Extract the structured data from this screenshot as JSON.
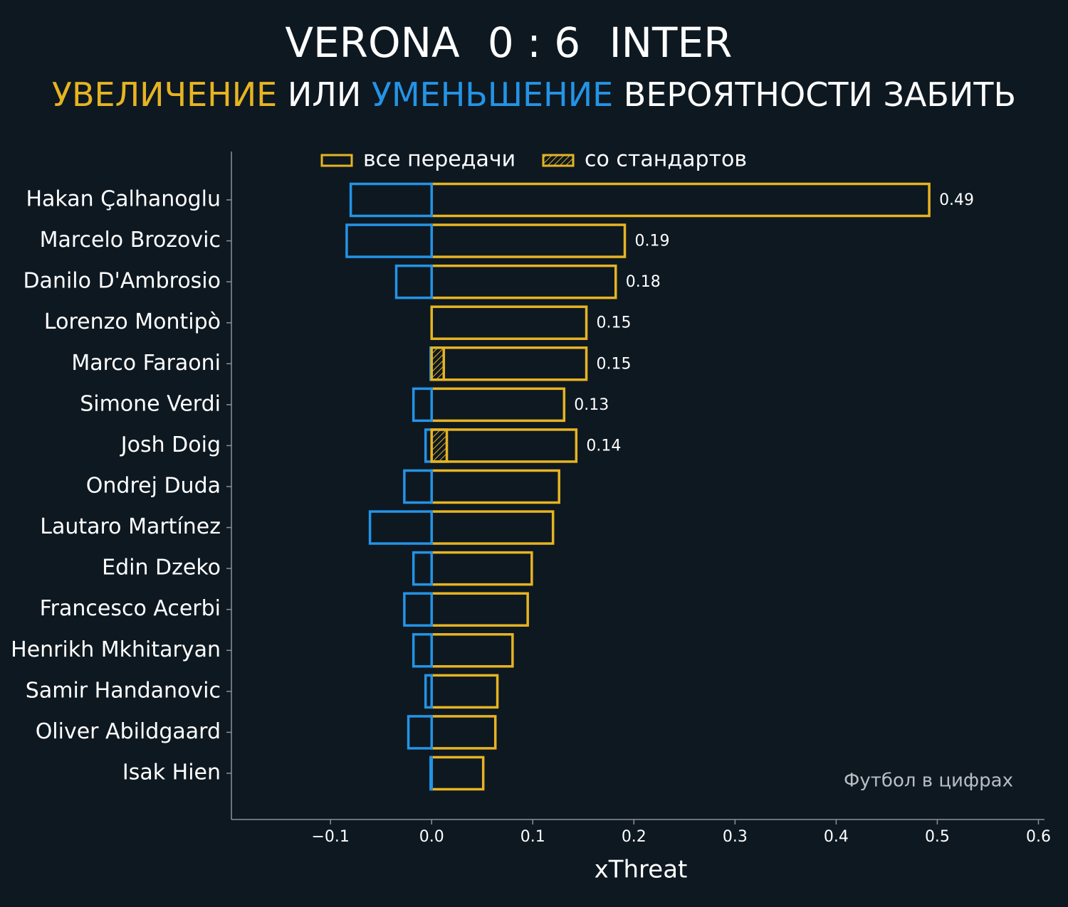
{
  "chart_data": {
    "type": "bar",
    "orientation": "horizontal",
    "title": [
      "VERONA",
      "0 : 6",
      "INTER"
    ],
    "subtitle": [
      "УВЕЛИЧЕНИЕ",
      "ИЛИ",
      "УМЕНЬШЕНИЕ",
      "ВЕРОЯТНОСТИ ЗАБИТЬ"
    ],
    "subtitle_colors": [
      "#e6b422",
      "#ffffff",
      "#2394e6",
      "#ffffff"
    ],
    "xlabel": "xThreat",
    "watermark": "Футбол в цифрах",
    "categories": [
      "Hakan Çalhanoglu",
      "Marcelo Brozovic",
      "Danilo D'Ambrosio",
      "Lorenzo Montipò",
      "Marco Faraoni",
      "Simone Verdi",
      "Josh Doig",
      "Ondrej Duda",
      "Lautaro Martínez",
      "Edin Dzeko",
      "Francesco Acerbi",
      "Henrikh Mkhitaryan",
      "Samir Handanovic",
      "Oliver Abildgaard",
      "Isak Hien"
    ],
    "series": [
      {
        "name": "все передачи",
        "color": "#e6b422",
        "values": [
          0.492,
          0.191,
          0.182,
          0.153,
          0.153,
          0.131,
          0.143,
          0.126,
          0.12,
          0.099,
          0.095,
          0.08,
          0.065,
          0.063,
          0.051
        ],
        "value_labels": [
          "0.49",
          "0.19",
          "0.18",
          "0.15",
          "0.15",
          "0.13",
          "0.14",
          null,
          null,
          null,
          null,
          null,
          null,
          null,
          null
        ]
      },
      {
        "color": "#2394e6",
        "values": [
          -0.08,
          -0.084,
          -0.035,
          0,
          -0.001,
          -0.018,
          -0.006,
          -0.027,
          -0.061,
          -0.018,
          -0.027,
          -0.018,
          -0.006,
          -0.023,
          -0.001
        ]
      },
      {
        "name": "со стандартов",
        "color": "#e6b422",
        "hatch": true,
        "values": [
          null,
          null,
          null,
          null,
          0.012,
          null,
          0.015,
          null,
          null,
          null,
          null,
          null,
          null,
          null,
          null
        ]
      }
    ],
    "xlim": [
      -0.198,
      0.606
    ],
    "xticks": [
      {
        "value": -0.1,
        "label": "−0.1"
      },
      {
        "value": 0,
        "label": "0.0"
      },
      {
        "value": 0.1,
        "label": "0.1"
      },
      {
        "value": 0.2,
        "label": "0.2"
      },
      {
        "value": 0.3,
        "label": "0.3"
      },
      {
        "value": 0.4,
        "label": "0.4"
      },
      {
        "value": 0.5,
        "label": "0.5"
      },
      {
        "value": 0.6,
        "label": "0.6"
      }
    ],
    "background": "#0e1821"
  }
}
